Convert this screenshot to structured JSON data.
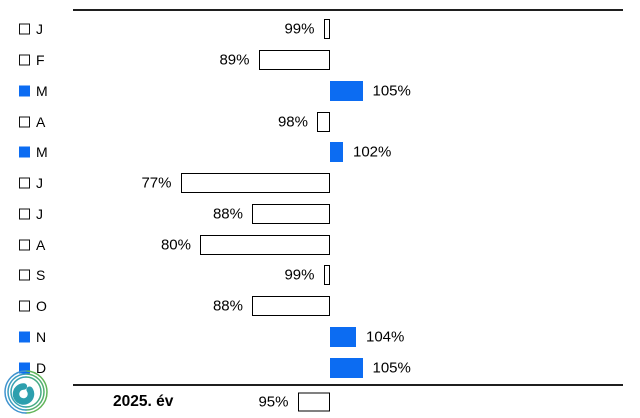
{
  "colors": {
    "bar_above_fill": "#0c6cf2",
    "bar_below_fill": "#ffffff",
    "bar_below_border": "#000000",
    "marker_filled": "#0c6cf2",
    "text": "#000000",
    "rule": "#1f1f1f",
    "logo_green": "#5cb25d",
    "logo_teal": "#35a2ae",
    "logo_blue": "#4094cf"
  },
  "chart_data": {
    "type": "bar",
    "orientation": "horizontal",
    "style": "deviation-from-baseline",
    "baseline_value": 100,
    "unit": "%",
    "xlim": [
      75,
      107
    ],
    "grid": "off",
    "categories": [
      "J",
      "F",
      "M",
      "A",
      "M",
      "J",
      "J",
      "A",
      "S",
      "O",
      "N",
      "D"
    ],
    "values": [
      99,
      89,
      105,
      98,
      102,
      77,
      88,
      80,
      99,
      88,
      104,
      105
    ],
    "value_labels": [
      "99%",
      "89%",
      "105%",
      "98%",
      "102%",
      "77%",
      "88%",
      "80%",
      "99%",
      "88%",
      "104%",
      "105%"
    ],
    "marker_style_by_row": [
      "outline",
      "outline",
      "filled",
      "outline",
      "filled",
      "outline",
      "outline",
      "outline",
      "outline",
      "outline",
      "filled",
      "filled"
    ],
    "summary": {
      "label": "2025. év",
      "value": 95,
      "value_label": "95%"
    }
  }
}
